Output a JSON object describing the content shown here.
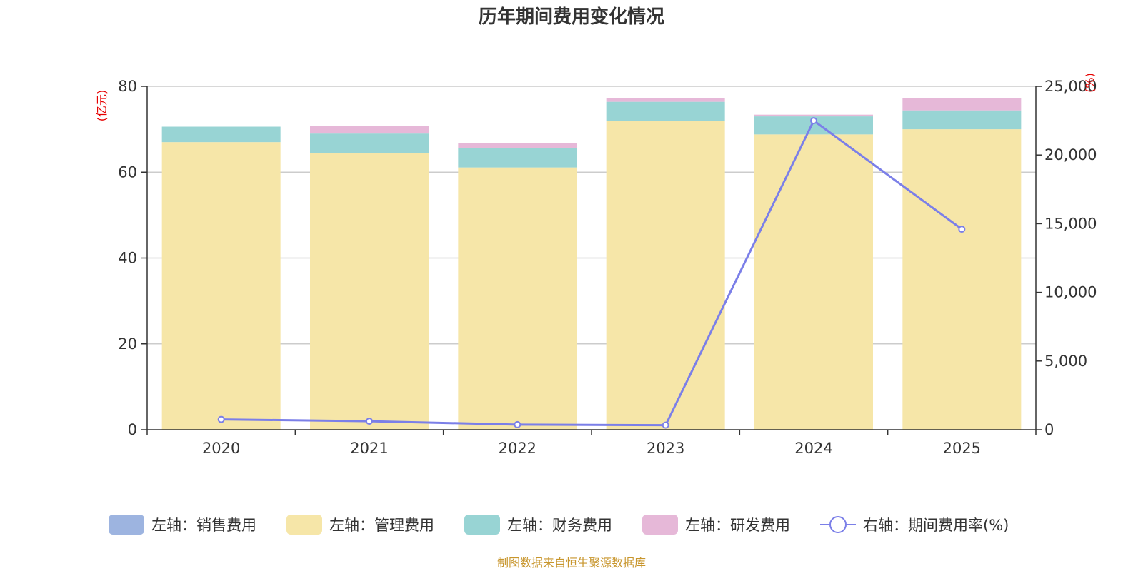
{
  "chart_data": {
    "type": "bar",
    "title": "历年期间费用变化情况",
    "categories": [
      "2020",
      "2021",
      "2022",
      "2023",
      "2024",
      "2025"
    ],
    "left_axis": {
      "unit": "(亿元)",
      "ylim": [
        0,
        80
      ],
      "ticks": [
        "0",
        "20",
        "40",
        "60",
        "80"
      ]
    },
    "right_axis": {
      "unit": "(%)",
      "ylim": [
        0,
        25000
      ],
      "ticks": [
        "0",
        "5,000",
        "10,000",
        "15,000",
        "20,000",
        "25,000"
      ]
    },
    "series": [
      {
        "name": "左轴：销售费用",
        "type": "bar",
        "axis": "left",
        "color": "#9db4e0",
        "values": [
          0,
          0,
          0,
          0,
          0,
          0
        ]
      },
      {
        "name": "左轴：管理费用",
        "type": "bar",
        "axis": "left",
        "color": "#f6e6a8",
        "values": [
          67,
          64.4,
          61.1,
          72,
          68.8,
          70
        ]
      },
      {
        "name": "左轴：财务费用",
        "type": "bar",
        "axis": "left",
        "color": "#98d4d4",
        "values": [
          3.6,
          4.6,
          4.6,
          4.4,
          4.2,
          4.4
        ]
      },
      {
        "name": "左轴：研发费用",
        "type": "bar",
        "axis": "left",
        "color": "#e6b8d8",
        "values": [
          0,
          1.8,
          1.0,
          0.9,
          0.4,
          2.8
        ]
      },
      {
        "name": "右轴：期间费用率(%)",
        "type": "line",
        "axis": "right",
        "color": "#7b7fe8",
        "values": [
          750,
          620,
          370,
          330,
          22500,
          14600
        ]
      }
    ],
    "grid": true,
    "legend": "bottom-center",
    "source_note": "制图数据来自恒生聚源数据库"
  }
}
